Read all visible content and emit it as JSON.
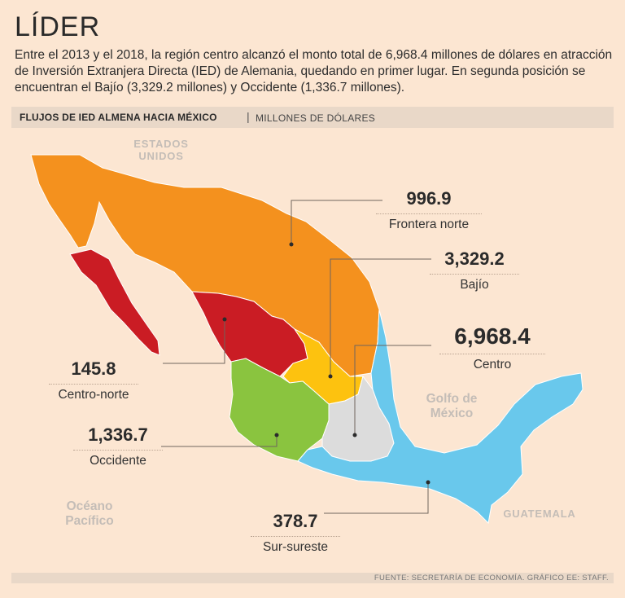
{
  "header": {
    "title": "LÍDER",
    "intro": "Entre el 2013 y el 2018, la región centro alcanzó el monto total de 6,968.4 millones de dólares en atracción de Inversión Extranjera Directa (IED) de Alemania, quedando en primer lugar. En segunda posición se encuentran el Bajío (3,329.2 millones) y Occidente (1,336.7 millones)."
  },
  "chart_header": {
    "title": "FLUJOS DE IED ALMENA HACIA MÉXICO",
    "separator": "|",
    "unit": "MILLONES DE DÓLARES"
  },
  "geo_labels": {
    "usa": "ESTADOS UNIDOS",
    "gulf": "Golfo de México",
    "pacific": "Océano Pacífico",
    "guatemala": "GUATEMALA"
  },
  "regions": [
    {
      "name": "Frontera norte",
      "value": "996.9",
      "color": "#f4911e"
    },
    {
      "name": "Bajío",
      "value": "3,329.2",
      "color": "#fdc20f"
    },
    {
      "name": "Centro",
      "value": "6,968.4",
      "color": "#dcdcdc"
    },
    {
      "name": "Centro-norte",
      "value": "145.8",
      "color": "#ca1c24"
    },
    {
      "name": "Occidente",
      "value": "1,336.7",
      "color": "#8ac43f"
    },
    {
      "name": "Sur-sureste",
      "value": "378.7",
      "color": "#69c8ec"
    }
  ],
  "footer": {
    "source": "FUENTE: SECRETARÍA DE ECONOMÍA. GRÁFICO EE: STAFF."
  }
}
